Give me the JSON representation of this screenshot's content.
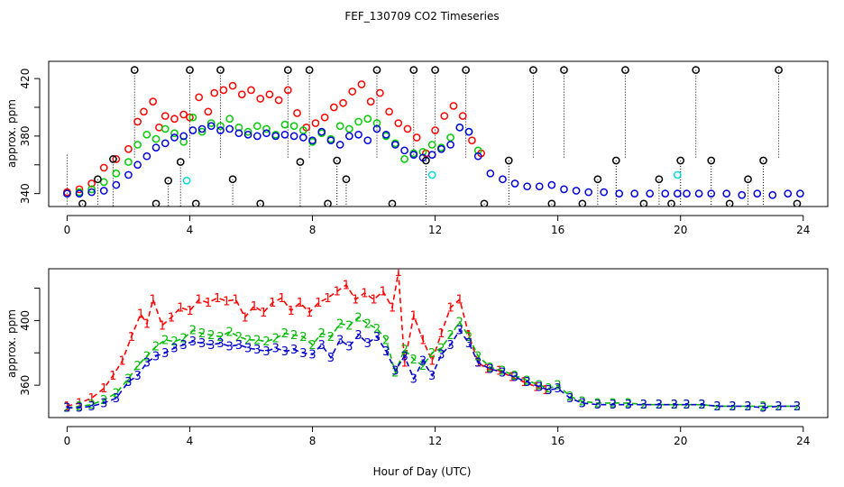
{
  "chart_data": [
    {
      "type": "scatter",
      "title": "FEF_130709  CO2 Timeseries",
      "xlabel": "",
      "ylabel": "approx. ppm",
      "xlim": [
        -0.6,
        24.8
      ],
      "ylim": [
        331,
        432
      ],
      "xticks": [
        0,
        4,
        8,
        12,
        16,
        20,
        24
      ],
      "xtick_labels": [
        "0",
        "4",
        "8",
        "12",
        "16",
        "20",
        "24"
      ],
      "yticks": [
        340,
        360,
        380,
        400,
        420
      ],
      "ytick_labels": [
        "340",
        "",
        "380",
        "",
        "420"
      ],
      "grid": false,
      "marker": "open-circle",
      "series": [
        {
          "color": "#ff0000",
          "x": [
            0.0,
            0.4,
            0.8,
            1.2,
            1.6,
            2.0,
            2.3,
            2.5,
            2.8,
            3.0,
            3.2,
            3.5,
            3.8,
            4.0,
            4.3,
            4.6,
            4.8,
            5.1,
            5.4,
            5.7,
            6.0,
            6.3,
            6.6,
            6.9,
            7.2,
            7.5,
            7.8,
            8.1,
            8.4,
            8.7,
            9.0,
            9.3,
            9.6,
            9.9,
            10.2,
            10.5,
            10.8,
            11.1,
            11.4,
            11.7,
            12.0,
            12.3,
            12.6,
            12.9,
            13.2,
            13.5
          ],
          "y": [
            341,
            343,
            347,
            358,
            364,
            371,
            390,
            397,
            404,
            386,
            394,
            392,
            395,
            393,
            407,
            397,
            410,
            412,
            415,
            409,
            412,
            406,
            409,
            405,
            412,
            396,
            386,
            389,
            393,
            400,
            403,
            411,
            416,
            404,
            410,
            397,
            389,
            385,
            379,
            368,
            384,
            394,
            401,
            394,
            377,
            368
          ]
        },
        {
          "color": "#00cc00",
          "x": [
            0.0,
            0.4,
            0.8,
            1.2,
            1.6,
            2.0,
            2.3,
            2.6,
            2.9,
            3.2,
            3.5,
            3.8,
            4.1,
            4.4,
            4.7,
            5.0,
            5.3,
            5.6,
            5.9,
            6.2,
            6.5,
            6.8,
            7.1,
            7.4,
            7.7,
            8.0,
            8.3,
            8.6,
            8.9,
            9.2,
            9.5,
            9.8,
            10.1,
            10.4,
            10.7,
            11.0,
            11.3,
            11.6,
            11.9,
            12.2,
            12.5,
            12.8,
            13.1,
            13.4
          ],
          "y": [
            340,
            341,
            343,
            348,
            354,
            362,
            374,
            381,
            378,
            385,
            382,
            376,
            393,
            383,
            389,
            387,
            392,
            386,
            383,
            387,
            385,
            381,
            388,
            387,
            384,
            376,
            382,
            378,
            387,
            385,
            390,
            392,
            389,
            380,
            375,
            364,
            368,
            369,
            374,
            372,
            379,
            386,
            383,
            370
          ]
        },
        {
          "color": "#0000dd",
          "x": [
            0.0,
            0.4,
            0.8,
            1.2,
            1.6,
            2.0,
            2.3,
            2.6,
            2.9,
            3.2,
            3.5,
            3.8,
            4.1,
            4.4,
            4.7,
            5.0,
            5.3,
            5.6,
            5.9,
            6.2,
            6.5,
            6.8,
            7.1,
            7.4,
            7.7,
            8.0,
            8.3,
            8.6,
            8.9,
            9.2,
            9.5,
            9.8,
            10.1,
            10.4,
            10.7,
            11.0,
            11.3,
            11.6,
            11.9,
            12.2,
            12.5,
            12.8,
            13.1,
            13.4,
            13.8,
            14.2,
            14.6,
            15.0,
            15.4,
            15.8,
            16.2,
            16.6,
            17.0,
            17.5,
            18.0,
            18.5,
            19.0,
            19.5,
            19.9,
            20.2,
            20.6,
            21.0,
            21.5,
            22.0,
            22.5,
            23.0,
            23.5,
            23.9
          ],
          "y": [
            340,
            340,
            341,
            342,
            346,
            353,
            360,
            366,
            372,
            375,
            379,
            380,
            384,
            385,
            387,
            384,
            385,
            382,
            381,
            380,
            382,
            380,
            381,
            380,
            379,
            377,
            383,
            377,
            374,
            380,
            381,
            377,
            385,
            381,
            374,
            370,
            367,
            365,
            367,
            371,
            374,
            386,
            383,
            366,
            354,
            350,
            347,
            345,
            345,
            346,
            343,
            342,
            341,
            341,
            340,
            340,
            340,
            340,
            340,
            340,
            340,
            340,
            340,
            339,
            340,
            339,
            340,
            340
          ]
        },
        {
          "color": "#00dddd",
          "x": [
            3.9,
            11.9,
            19.9
          ],
          "y": [
            349,
            353,
            353
          ]
        },
        {
          "color": "#000000",
          "x": [
            0.5,
            1.0,
            1.5,
            2.2,
            2.9,
            3.3,
            3.7,
            4.0,
            4.2,
            5.0,
            5.4,
            6.3,
            7.2,
            7.6,
            7.9,
            8.5,
            8.8,
            9.1,
            10.1,
            10.6,
            11.3,
            11.7,
            12.0,
            13.0,
            13.6,
            14.4,
            15.2,
            15.8,
            16.2,
            16.8,
            17.3,
            17.9,
            18.2,
            18.8,
            19.3,
            19.7,
            20.0,
            20.5,
            21.0,
            21.6,
            22.2,
            22.7,
            23.2,
            23.8
          ],
          "y": [
            333,
            350,
            364,
            426,
            333,
            349,
            362,
            426,
            333,
            426,
            350,
            333,
            426,
            362,
            426,
            333,
            363,
            350,
            426,
            333,
            426,
            363,
            426,
            426,
            333,
            363,
            426,
            333,
            426,
            333,
            350,
            363,
            426,
            333,
            350,
            333,
            363,
            426,
            363,
            333,
            350,
            363,
            426,
            333
          ]
        }
      ]
    },
    {
      "type": "line",
      "title": "",
      "xlabel": "Hour of Day (UTC)",
      "ylabel": "approx. ppm",
      "xlim": [
        -0.6,
        24.8
      ],
      "ylim": [
        340,
        432
      ],
      "xticks": [
        0,
        4,
        8,
        12,
        16,
        20,
        24
      ],
      "xtick_labels": [
        "0",
        "4",
        "8",
        "12",
        "16",
        "20",
        "24"
      ],
      "yticks": [
        360,
        380,
        400,
        420
      ],
      "ytick_labels": [
        "360",
        "",
        "400",
        ""
      ],
      "grid": false,
      "line_style": "dashed-with-numeral-markers",
      "series": [
        {
          "symbol": "1",
          "color": "#ff0000",
          "x": [
            0.0,
            0.4,
            0.8,
            1.2,
            1.5,
            1.8,
            2.1,
            2.4,
            2.6,
            2.8,
            3.1,
            3.4,
            3.7,
            4.0,
            4.3,
            4.6,
            4.9,
            5.2,
            5.5,
            5.8,
            6.1,
            6.4,
            6.7,
            7.0,
            7.3,
            7.6,
            7.9,
            8.2,
            8.5,
            8.8,
            9.1,
            9.4,
            9.7,
            10.0,
            10.3,
            10.6,
            10.8,
            11.0,
            11.3,
            11.6,
            11.9,
            12.2,
            12.5,
            12.8,
            13.1,
            13.4,
            13.7,
            14.1,
            14.5,
            14.9,
            15.3,
            15.6
          ],
          "y": [
            347,
            349,
            352,
            358,
            366,
            375,
            390,
            404,
            398,
            413,
            397,
            402,
            408,
            406,
            413,
            411,
            414,
            412,
            413,
            402,
            409,
            405,
            411,
            414,
            406,
            411,
            405,
            411,
            414,
            418,
            422,
            413,
            417,
            413,
            418,
            408,
            430,
            374,
            403,
            388,
            375,
            392,
            408,
            413,
            391,
            374,
            370,
            369,
            365,
            362,
            359,
            357
          ]
        },
        {
          "symbol": "2",
          "color": "#00bb00",
          "x": [
            0.0,
            0.4,
            0.8,
            1.2,
            1.6,
            2.0,
            2.3,
            2.6,
            2.9,
            3.2,
            3.5,
            3.8,
            4.1,
            4.4,
            4.7,
            5.0,
            5.3,
            5.6,
            5.9,
            6.2,
            6.5,
            6.8,
            7.1,
            7.4,
            7.7,
            8.0,
            8.3,
            8.6,
            8.9,
            9.2,
            9.5,
            9.8,
            10.1,
            10.4,
            10.7,
            11.0,
            11.3,
            11.6,
            11.9,
            12.2,
            12.5,
            12.8,
            13.1,
            13.4,
            13.8,
            14.2,
            14.6,
            15.0,
            15.4,
            15.7,
            16.0,
            16.4,
            16.8,
            17.3,
            17.8,
            18.3,
            18.8,
            19.3,
            19.8,
            20.2,
            20.7,
            21.2,
            21.7,
            22.2,
            22.7,
            23.2,
            23.8
          ],
          "y": [
            346,
            347,
            348,
            351,
            355,
            364,
            372,
            378,
            384,
            388,
            387,
            389,
            394,
            392,
            391,
            390,
            393,
            390,
            388,
            388,
            387,
            389,
            392,
            391,
            390,
            385,
            392,
            390,
            398,
            397,
            402,
            398,
            395,
            388,
            368,
            382,
            376,
            372,
            380,
            383,
            391,
            399,
            390,
            378,
            371,
            369,
            366,
            363,
            360,
            358,
            360,
            353,
            350,
            349,
            349,
            349,
            348,
            348,
            348,
            348,
            348,
            347,
            347,
            347,
            347,
            347,
            347
          ]
        },
        {
          "symbol": "3",
          "color": "#0000cc",
          "x": [
            0.0,
            0.4,
            0.8,
            1.2,
            1.6,
            2.0,
            2.3,
            2.6,
            2.9,
            3.2,
            3.5,
            3.8,
            4.1,
            4.4,
            4.7,
            5.0,
            5.3,
            5.6,
            5.9,
            6.2,
            6.5,
            6.8,
            7.1,
            7.4,
            7.7,
            8.0,
            8.3,
            8.6,
            8.9,
            9.2,
            9.5,
            9.8,
            10.1,
            10.4,
            10.7,
            11.0,
            11.3,
            11.6,
            11.9,
            12.2,
            12.5,
            12.8,
            13.1,
            13.4,
            13.8,
            14.2,
            14.6,
            15.0,
            15.4,
            15.7,
            16.0,
            16.4,
            16.8,
            17.3,
            17.8,
            18.3,
            18.8,
            19.3,
            19.8,
            20.2,
            20.7,
            21.2,
            21.7,
            22.2,
            22.7,
            23.2,
            23.8
          ],
          "y": [
            346,
            346,
            347,
            349,
            352,
            362,
            366,
            374,
            378,
            380,
            383,
            385,
            387,
            386,
            385,
            386,
            384,
            385,
            383,
            382,
            381,
            383,
            381,
            382,
            380,
            379,
            385,
            377,
            388,
            384,
            391,
            386,
            390,
            381,
            369,
            378,
            364,
            375,
            366,
            379,
            385,
            394,
            386,
            374,
            370,
            368,
            365,
            362,
            359,
            357,
            358,
            352,
            349,
            348,
            348,
            348,
            348,
            348,
            348,
            348,
            348,
            347,
            347,
            347,
            346,
            347,
            347
          ]
        }
      ]
    }
  ]
}
